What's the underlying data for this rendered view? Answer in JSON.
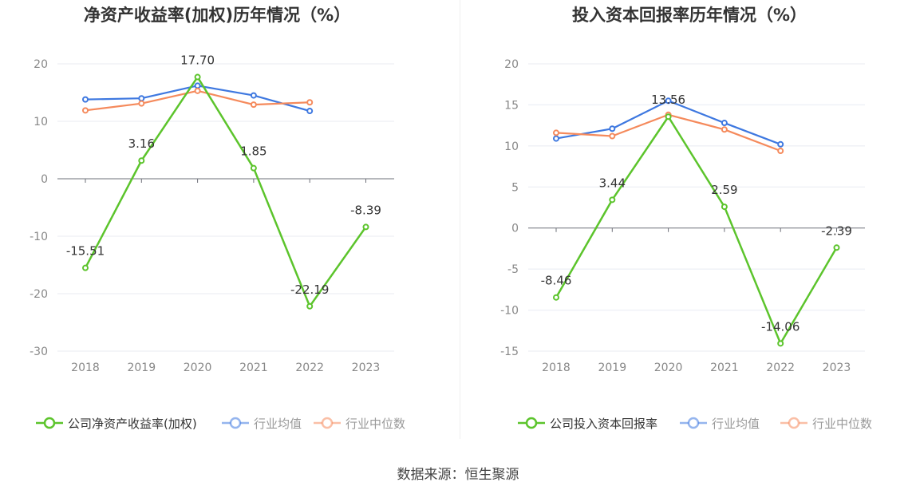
{
  "source_text": "数据来源：恒生聚源",
  "colors": {
    "company": "#5cc42c",
    "industry_avg": "#3e78e0",
    "industry_median": "#f58a5c",
    "axis": "#666666",
    "grid": "#e8ebf2",
    "tick_text": "#888888",
    "title": "#333333"
  },
  "chart_data": [
    {
      "type": "line",
      "title": "净资产收益率(加权)历年情况（%）",
      "categories": [
        "2018",
        "2019",
        "2020",
        "2021",
        "2022",
        "2023"
      ],
      "ylim": [
        -30,
        20
      ],
      "yticks": [
        20,
        10,
        0,
        -10,
        -20,
        -30
      ],
      "ytick_labels": [
        "20",
        "10",
        "0",
        "-10",
        "-20",
        "-30"
      ],
      "grid": true,
      "legend_position": "bottom",
      "series": [
        {
          "name": "公司净资产收益率(加权)",
          "key": "company",
          "values": [
            -15.51,
            3.16,
            17.7,
            1.85,
            -22.19,
            -8.39
          ],
          "labels": [
            "-15.51",
            "3.16",
            "17.70",
            "1.85",
            "-22.19",
            "-8.39"
          ]
        },
        {
          "name": "行业均值",
          "key": "industry_avg",
          "values": [
            13.8,
            14.0,
            16.2,
            14.5,
            11.8,
            null
          ]
        },
        {
          "name": "行业中位数",
          "key": "industry_median",
          "values": [
            11.9,
            13.1,
            15.3,
            12.9,
            13.3,
            null
          ]
        }
      ]
    },
    {
      "type": "line",
      "title": "投入资本回报率历年情况（%）",
      "categories": [
        "2018",
        "2019",
        "2020",
        "2021",
        "2022",
        "2023"
      ],
      "ylim": [
        -15,
        20
      ],
      "yticks": [
        20,
        15,
        10,
        5,
        0,
        -5,
        -10,
        -15
      ],
      "ytick_labels": [
        "20",
        "15",
        "10",
        "5",
        "0",
        "-5",
        "-10",
        "-15"
      ],
      "grid": true,
      "legend_position": "bottom",
      "series": [
        {
          "name": "公司投入资本回报率",
          "key": "company",
          "values": [
            -8.46,
            3.44,
            13.56,
            2.59,
            -14.06,
            -2.39
          ],
          "labels": [
            "-8.46",
            "3.44",
            "13.56",
            "2.59",
            "-14.06",
            "-2.39"
          ]
        },
        {
          "name": "行业均值",
          "key": "industry_avg",
          "values": [
            10.9,
            12.1,
            15.5,
            12.8,
            10.2,
            null
          ]
        },
        {
          "name": "行业中位数",
          "key": "industry_median",
          "values": [
            11.6,
            11.2,
            13.8,
            12.0,
            9.4,
            null
          ]
        }
      ]
    }
  ]
}
